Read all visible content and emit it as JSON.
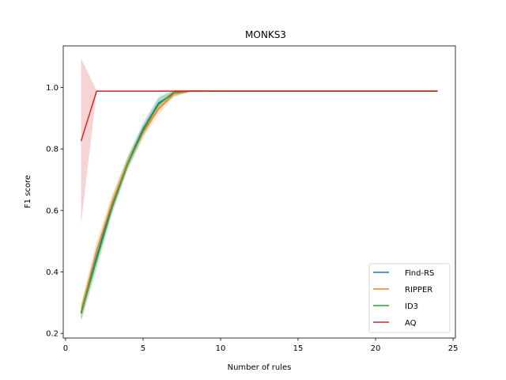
{
  "chart_data": {
    "type": "line",
    "title": "MONKS3",
    "xlabel": "Number of rules",
    "ylabel": "F1 score",
    "xlim": [
      -0.15,
      25.15
    ],
    "ylim": [
      0.185,
      1.135
    ],
    "xticks": [
      0,
      5,
      10,
      15,
      20,
      25
    ],
    "yticks": [
      0.2,
      0.4,
      0.6,
      0.8,
      1.0
    ],
    "ytick_labels": [
      "0.2",
      "0.4",
      "0.6",
      "0.8",
      "1.0"
    ],
    "grid": false,
    "legend_position": "lower-right",
    "series": [
      {
        "name": "Find-RS",
        "color": "#1f77b4",
        "x": [
          1,
          2,
          3,
          4,
          5,
          6,
          7,
          8,
          10,
          15,
          20,
          24
        ],
        "y": [
          0.265,
          0.45,
          0.62,
          0.755,
          0.865,
          0.95,
          0.98,
          0.988,
          0.988,
          0.988,
          0.988,
          0.988
        ],
        "lower": [
          0.24,
          0.42,
          0.595,
          0.735,
          0.845,
          0.93,
          0.97,
          0.985,
          0.986,
          0.986,
          0.986,
          0.986
        ],
        "upper": [
          0.29,
          0.48,
          0.645,
          0.775,
          0.885,
          0.97,
          0.99,
          0.991,
          0.99,
          0.99,
          0.99,
          0.99
        ]
      },
      {
        "name": "RIPPER",
        "color": "#ff7f0e",
        "x": [
          1,
          2,
          3,
          4,
          5,
          6,
          7,
          8,
          10,
          15,
          20,
          24
        ],
        "y": [
          0.27,
          0.47,
          0.625,
          0.755,
          0.855,
          0.93,
          0.98,
          0.988,
          0.988,
          0.988,
          0.988,
          0.988
        ],
        "lower": [
          0.245,
          0.44,
          0.6,
          0.735,
          0.835,
          0.91,
          0.97,
          0.985,
          0.986,
          0.986,
          0.986,
          0.986
        ],
        "upper": [
          0.295,
          0.5,
          0.65,
          0.775,
          0.875,
          0.95,
          0.99,
          0.991,
          0.99,
          0.99,
          0.99,
          0.99
        ]
      },
      {
        "name": "ID3",
        "color": "#2ca02c",
        "x": [
          1,
          2,
          3,
          4,
          5,
          6,
          7,
          8,
          10,
          15,
          20,
          24
        ],
        "y": [
          0.265,
          0.44,
          0.61,
          0.75,
          0.86,
          0.945,
          0.985,
          0.988,
          0.988,
          0.988,
          0.988,
          0.988
        ],
        "lower": [
          0.24,
          0.405,
          0.585,
          0.73,
          0.84,
          0.925,
          0.975,
          0.985,
          0.986,
          0.986,
          0.986,
          0.986
        ],
        "upper": [
          0.29,
          0.475,
          0.635,
          0.77,
          0.88,
          0.965,
          0.993,
          0.991,
          0.99,
          0.99,
          0.99,
          0.99
        ]
      },
      {
        "name": "AQ",
        "color": "#d62728",
        "x": [
          1,
          2,
          3,
          4,
          5,
          6,
          7,
          8,
          10,
          15,
          20,
          24
        ],
        "y": [
          0.825,
          0.988,
          0.988,
          0.988,
          0.988,
          0.988,
          0.988,
          0.988,
          0.988,
          0.988,
          0.988,
          0.988
        ],
        "lower": [
          0.555,
          0.986,
          0.986,
          0.986,
          0.986,
          0.986,
          0.986,
          0.986,
          0.986,
          0.986,
          0.986,
          0.986
        ],
        "upper": [
          1.095,
          0.99,
          0.99,
          0.99,
          0.99,
          0.99,
          0.99,
          0.99,
          0.99,
          0.99,
          0.99,
          0.99
        ]
      }
    ]
  }
}
